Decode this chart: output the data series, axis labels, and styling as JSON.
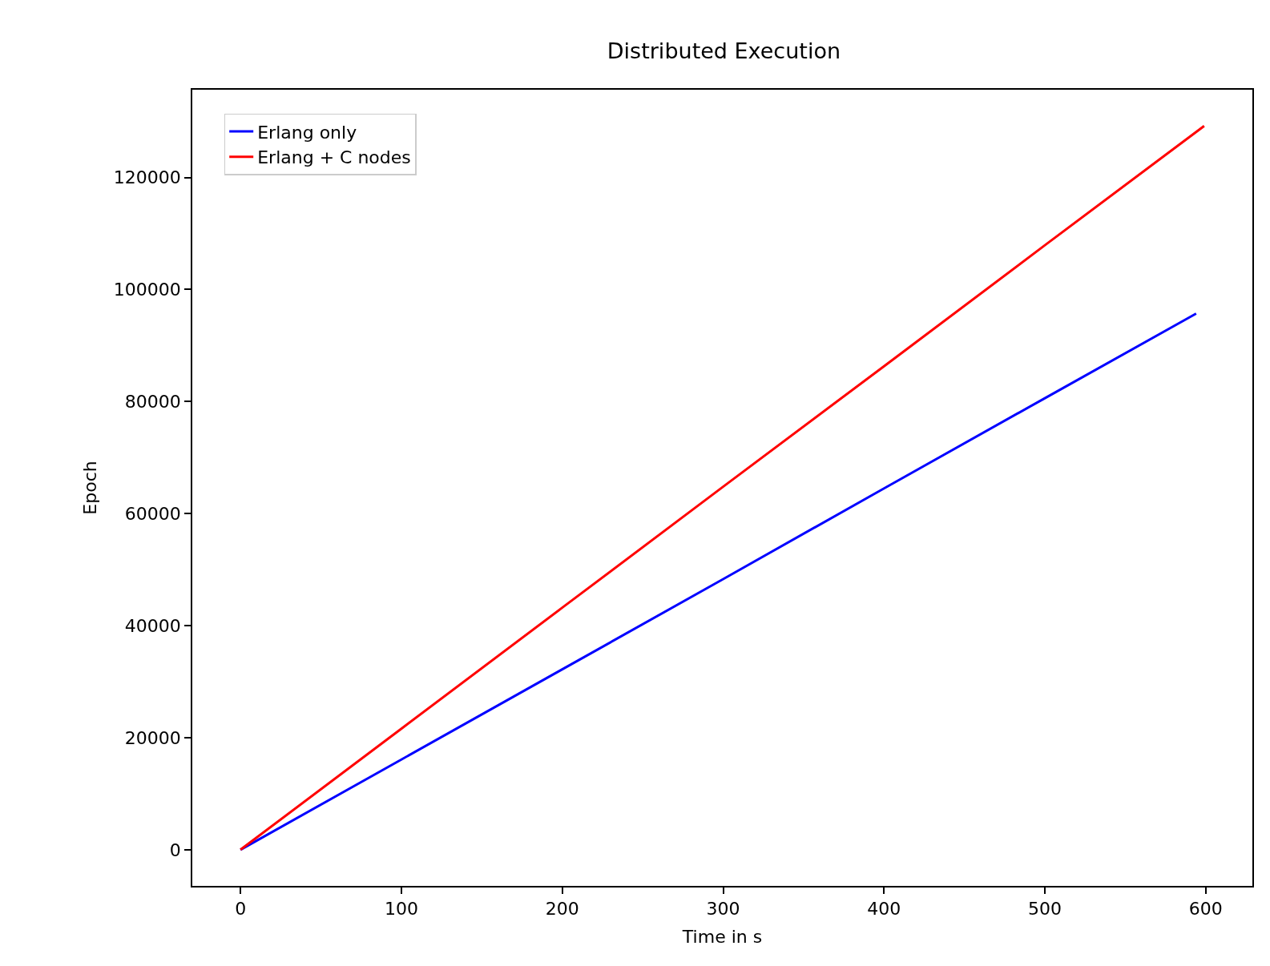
{
  "chart_data": {
    "type": "line",
    "title": "Distributed Execution",
    "xlabel": "Time in s",
    "ylabel": "Epoch",
    "xlim": [
      -29.95,
      628.95
    ],
    "ylim": [
      -6460,
      135660
    ],
    "xticks": [
      0,
      100,
      200,
      300,
      400,
      500,
      600
    ],
    "yticks": [
      0,
      20000,
      40000,
      60000,
      80000,
      100000,
      120000
    ],
    "legend": "top left",
    "marker": "none",
    "line_style": "solid",
    "series": [
      {
        "name": "Erlang only",
        "color": "#0000ff",
        "x": [
          0,
          100,
          200,
          300,
          400,
          500,
          594
        ],
        "values": [
          0,
          16100,
          32200,
          48300,
          64500,
          80600,
          95700
        ]
      },
      {
        "name": "Erlang + C nodes",
        "color": "#ff0000",
        "x": [
          0,
          100,
          200,
          300,
          400,
          500,
          599
        ],
        "values": [
          0,
          21600,
          43200,
          64800,
          86300,
          107900,
          129200
        ]
      }
    ]
  }
}
